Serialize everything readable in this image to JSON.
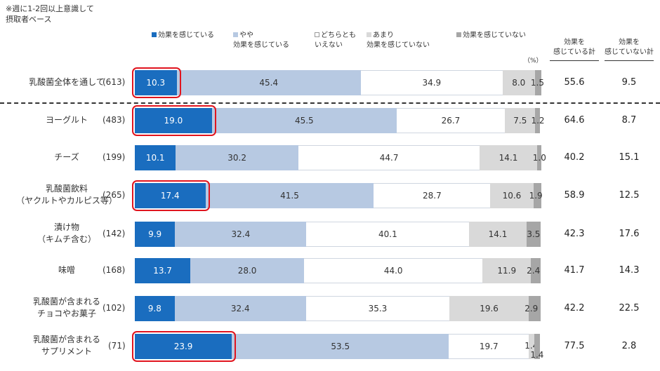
{
  "note": {
    "line1": "※週に1-2回以上意識して",
    "line2": "摂取者ベース"
  },
  "colors": {
    "effective": "#1a6dbf",
    "somewhat": "#b7c9e2",
    "neutral": "#ffffff",
    "not_much": "#d9d9d9",
    "not_effective": "#a6a6a6"
  },
  "legend": [
    {
      "line1": "効果を感じている",
      "line2": ""
    },
    {
      "line1": "やや",
      "line2": "効果を感じている"
    },
    {
      "line1": "どちらとも",
      "line2": "いえない"
    },
    {
      "line1": "あまり",
      "line2": "効果を感じていない"
    },
    {
      "line1": "効果を感じていない",
      "line2": ""
    }
  ],
  "unit_label": "（%）",
  "summary_headers": [
    {
      "line1": "効果を",
      "line2": "感じている計"
    },
    {
      "line1": "効果を",
      "line2": "感じていない計"
    }
  ],
  "chart_data": {
    "type": "bar",
    "orientation": "horizontal",
    "stacked": true,
    "xlim": [
      0,
      100
    ],
    "categories": [
      "乳酸菌全体を通して",
      "ヨーグルト",
      "チーズ",
      "乳酸菌飲料（ヤクルトやカルピス等）",
      "漬け物（キムチ含む）",
      "味噌",
      "乳酸菌が含まれるチョコやお菓子",
      "乳酸菌が含まれるサプリメント"
    ],
    "category_lines": [
      [
        "乳酸菌全体を通して"
      ],
      [
        "ヨーグルト"
      ],
      [
        "チーズ"
      ],
      [
        "乳酸菌飲料",
        "（ヤクルトやカルピス等）"
      ],
      [
        "漬け物",
        "（キムチ含む）"
      ],
      [
        "味噌"
      ],
      [
        "乳酸菌が含まれる",
        "チョコやお菓子"
      ],
      [
        "乳酸菌が含まれる",
        "サプリメント"
      ]
    ],
    "sample_sizes": [
      "(613)",
      "(483)",
      "(199)",
      "(265)",
      "(142)",
      "(168)",
      "(102)",
      "(71)"
    ],
    "series": [
      {
        "name": "効果を感じている",
        "values": [
          10.3,
          19.0,
          10.1,
          17.4,
          9.9,
          13.7,
          9.8,
          23.9
        ]
      },
      {
        "name": "やや効果を感じている",
        "values": [
          45.4,
          45.5,
          30.2,
          41.5,
          32.4,
          28.0,
          32.4,
          53.5
        ]
      },
      {
        "name": "どちらともいえない",
        "values": [
          34.9,
          26.7,
          44.7,
          28.7,
          40.1,
          44.0,
          35.3,
          19.7
        ]
      },
      {
        "name": "あまり効果を感じていない",
        "values": [
          8.0,
          7.5,
          14.1,
          10.6,
          14.1,
          11.9,
          19.6,
          1.4
        ]
      },
      {
        "name": "効果を感じていない",
        "values": [
          1.5,
          1.2,
          1.0,
          1.9,
          3.5,
          2.4,
          2.9,
          1.4
        ]
      }
    ],
    "value_labels": [
      [
        "10.3",
        "45.4",
        "34.9",
        "8.0",
        "1.5"
      ],
      [
        "19.0",
        "45.5",
        "26.7",
        "7.5",
        "1.2"
      ],
      [
        "10.1",
        "30.2",
        "44.7",
        "14.1",
        "1.0"
      ],
      [
        "17.4",
        "41.5",
        "28.7",
        "10.6",
        "1.9"
      ],
      [
        "9.9",
        "32.4",
        "40.1",
        "14.1",
        "3.5"
      ],
      [
        "13.7",
        "28.0",
        "44.0",
        "11.9",
        "2.4"
      ],
      [
        "9.8",
        "32.4",
        "35.3",
        "19.6",
        "2.9"
      ],
      [
        "23.9",
        "53.5",
        "19.7",
        "1.4",
        "1.4"
      ]
    ],
    "totals_effective": [
      "55.6",
      "64.6",
      "40.2",
      "58.9",
      "42.3",
      "41.7",
      "42.2",
      "77.5"
    ],
    "totals_not_effective": [
      "9.5",
      "8.7",
      "15.1",
      "12.5",
      "17.6",
      "14.3",
      "22.5",
      "2.8"
    ],
    "highlighted_rows": [
      0,
      1,
      3,
      7
    ]
  }
}
